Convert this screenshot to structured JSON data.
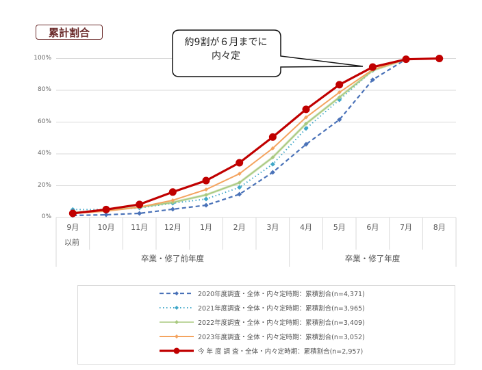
{
  "header": {
    "tag_label": "累計割合"
  },
  "callout": {
    "line1": "約9割が６月までに",
    "line2": "内々定"
  },
  "axes": {
    "y_ticks": [
      "0%",
      "20%",
      "40%",
      "60%",
      "80%",
      "100%"
    ],
    "x_categories": [
      "9月",
      "10月",
      "11月",
      "12月",
      "1月",
      "2月",
      "3月",
      "4月",
      "5月",
      "6月",
      "7月",
      "8月"
    ],
    "x_first_sub": "以前",
    "groups": [
      "卒業・修了前年度",
      "卒業・修了年度"
    ]
  },
  "legend": [
    {
      "label": "2020年度調査・全体・内々定時期：累積割合(n=4,371)",
      "color": "#4a72b8",
      "style": "dashed"
    },
    {
      "label": "2021年度調査・全体・内々定時期：累積割合(n=3,965)",
      "color": "#3fa7c8",
      "style": "dotted"
    },
    {
      "label": "2022年度調査・全体・内々定時期：累積割合(n=3,409)",
      "color": "#a8c97f",
      "style": "solid-thin"
    },
    {
      "label": "2023年度調査・全体・内々定時期：累積割合(n=3,052)",
      "color": "#f4a460",
      "style": "solid"
    },
    {
      "label": "今 年 度 調 査・全体・内々定時期：累積割合(n=2,957)",
      "color": "#c00000",
      "style": "solid-thick"
    }
  ],
  "chart_data": {
    "type": "line",
    "title": "累計割合",
    "annotation": "約9割が６月までに内々定",
    "categories": [
      "9月以前",
      "10月",
      "11月",
      "12月",
      "1月",
      "2月",
      "3月",
      "4月",
      "5月",
      "6月",
      "7月",
      "8月"
    ],
    "category_groups": [
      {
        "label": "卒業・修了前年度",
        "span": [
          "9月以前",
          "3月"
        ]
      },
      {
        "label": "卒業・修了年度",
        "span": [
          "4月",
          "8月"
        ]
      }
    ],
    "xlabel": "",
    "ylabel": "",
    "ylim": [
      0,
      100
    ],
    "y_unit": "%",
    "grid": true,
    "legend_position": "bottom",
    "series": [
      {
        "name": "2020年度調査・全体・内々定時期：累積割合(n=4,371)",
        "values": [
          1.3,
          1.7,
          2.6,
          5.2,
          7.7,
          14.6,
          28.4,
          46,
          61.5,
          86.6,
          99.5,
          null
        ]
      },
      {
        "name": "2021年度調査・全体・内々定時期：累積割合(n=3,965)",
        "values": [
          5,
          5,
          6,
          9,
          11.6,
          18.9,
          33.5,
          56,
          74,
          92.5,
          99.5,
          null
        ]
      },
      {
        "name": "2022年度調査・全体・内々定時期：累積割合(n=3,409)",
        "values": [
          3,
          4.5,
          6.5,
          9.5,
          14.2,
          21.9,
          37.8,
          59,
          75.6,
          92.5,
          99.5,
          null
        ]
      },
      {
        "name": "2023年度調査・全体・内々定時期：累積割合(n=3,052)",
        "values": [
          2.5,
          4,
          6.5,
          10.8,
          17.6,
          27.5,
          43.5,
          63,
          78.7,
          93,
          99.5,
          null
        ]
      },
      {
        "name": "今年度調査・全体・内々定時期：累積割合(n=2,957)",
        "values": [
          2.6,
          5,
          8.2,
          16,
          23.2,
          34.4,
          50.6,
          68,
          83.5,
          94.6,
          99.5,
          100
        ]
      }
    ]
  }
}
